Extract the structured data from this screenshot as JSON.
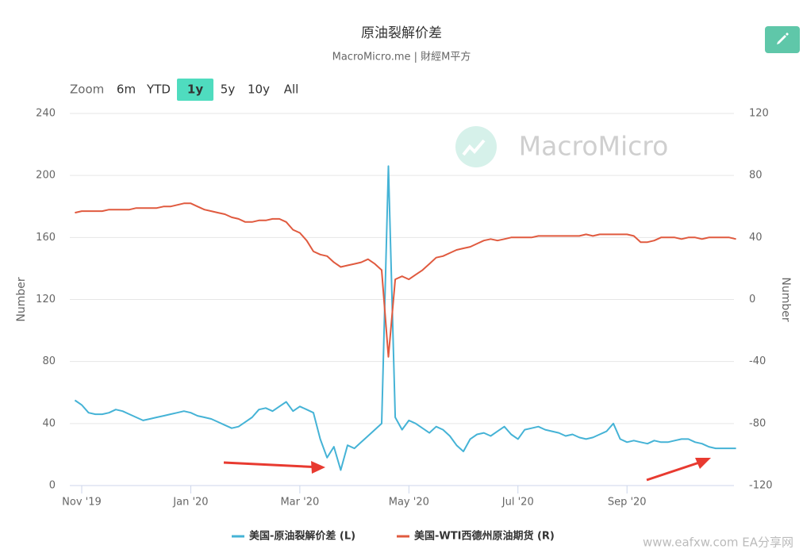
{
  "chart_data": {
    "type": "line",
    "title": "原油裂解价差",
    "subtitle": "MacroMicro.me | 財經M平方",
    "watermark": "MacroMicro",
    "range_selector": {
      "label": "Zoom",
      "buttons": [
        "6m",
        "YTD",
        "1y",
        "5y",
        "10y",
        "All"
      ],
      "selected": "1y"
    },
    "ylabel": "Number",
    "y2label": "Number",
    "ylim": [
      0,
      240
    ],
    "yticks": [
      0,
      40,
      80,
      120,
      160,
      200,
      240
    ],
    "y2lim": [
      -120,
      120
    ],
    "y2ticks": [
      -120,
      -80,
      -40,
      0,
      40,
      80,
      120
    ],
    "grid": true,
    "categories": [
      null,
      "Nov '19",
      null,
      null,
      null,
      null,
      null,
      null,
      null,
      null,
      null,
      null,
      null,
      null,
      null,
      null,
      null,
      "Jan '20",
      null,
      null,
      null,
      null,
      null,
      null,
      null,
      null,
      null,
      null,
      null,
      null,
      null,
      null,
      null,
      "Mar '20",
      null,
      null,
      null,
      null,
      null,
      null,
      null,
      null,
      null,
      null,
      null,
      null,
      null,
      null,
      null,
      "May '20",
      null,
      null,
      null,
      null,
      null,
      null,
      null,
      null,
      null,
      null,
      null,
      null,
      null,
      null,
      null,
      "Jul '20",
      null,
      null,
      null,
      null,
      null,
      null,
      null,
      null,
      null,
      null,
      null,
      null,
      null,
      null,
      null,
      "Sep '20",
      null,
      null,
      null,
      null,
      null,
      null,
      null,
      null,
      null,
      null,
      null,
      null,
      null,
      null,
      null,
      null
    ],
    "series": [
      {
        "name": "美国-原油裂解价差 (L)",
        "color": "#45b3d6",
        "values": [
          55,
          52,
          47,
          46,
          46,
          47,
          49,
          48,
          46,
          44,
          42,
          43,
          44,
          45,
          46,
          47,
          48,
          47,
          45,
          44,
          43,
          41,
          39,
          37,
          38,
          41,
          44,
          49,
          50,
          48,
          51,
          54,
          48,
          51,
          49,
          47,
          30,
          18,
          25,
          10,
          26,
          24,
          28,
          32,
          36,
          40,
          206,
          44,
          36,
          42,
          40,
          37,
          34,
          38,
          36,
          32,
          26,
          22,
          30,
          33,
          34,
          32,
          35,
          38,
          33,
          30,
          36,
          37,
          38,
          36,
          35,
          34,
          32,
          33,
          31,
          30,
          31,
          33,
          35,
          40,
          30,
          28,
          29,
          28,
          27,
          29,
          28,
          28,
          29,
          30,
          30,
          28,
          27,
          25,
          24,
          24,
          24,
          24
        ]
      },
      {
        "name": "美国-WTI西德州原油期货 (R)",
        "color": "#e05a3f",
        "axis": "y2",
        "values": [
          56,
          57,
          57,
          57,
          57,
          58,
          58,
          58,
          58,
          59,
          59,
          59,
          59,
          60,
          60,
          61,
          62,
          62,
          60,
          58,
          57,
          56,
          55,
          53,
          52,
          50,
          50,
          51,
          51,
          52,
          52,
          50,
          45,
          43,
          38,
          31,
          29,
          28,
          24,
          21,
          22,
          23,
          24,
          26,
          23,
          19,
          -37,
          13,
          15,
          13,
          16,
          19,
          23,
          27,
          28,
          30,
          32,
          33,
          34,
          36,
          38,
          39,
          38,
          39,
          40,
          40,
          40,
          40,
          41,
          41,
          41,
          41,
          41,
          41,
          41,
          42,
          41,
          42,
          42,
          42,
          42,
          42,
          41,
          37,
          37,
          38,
          40,
          40,
          40,
          39,
          40,
          40,
          39,
          40,
          40,
          40,
          40,
          39
        ]
      }
    ]
  },
  "footer": "www.eafxw.com  EA分享网"
}
